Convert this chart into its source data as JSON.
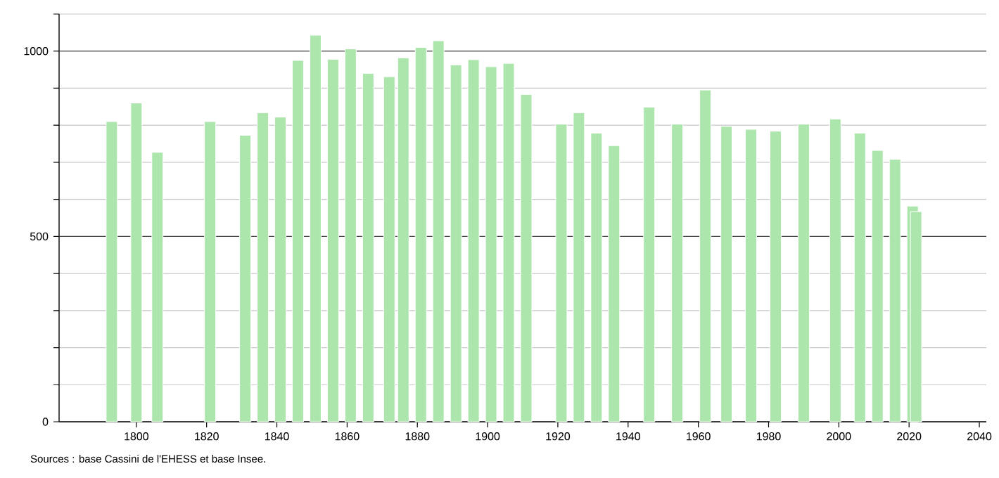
{
  "chart_data": {
    "type": "bar",
    "x": [
      1793,
      1800,
      1806,
      1821,
      1831,
      1836,
      1841,
      1846,
      1851,
      1856,
      1861,
      1866,
      1872,
      1876,
      1881,
      1886,
      1891,
      1896,
      1901,
      1906,
      1911,
      1921,
      1926,
      1931,
      1936,
      1946,
      1954,
      1962,
      1968,
      1975,
      1982,
      1990,
      1999,
      2006,
      2011,
      2016,
      2021,
      2022
    ],
    "values": [
      810,
      860,
      727,
      810,
      773,
      834,
      822,
      975,
      1043,
      978,
      1006,
      940,
      931,
      982,
      1010,
      1028,
      963,
      977,
      958,
      967,
      883,
      803,
      834,
      779,
      745,
      849,
      803,
      895,
      797,
      789,
      784,
      803,
      817,
      779,
      732,
      708,
      582,
      567
    ],
    "color": "#ade6ad",
    "xlim": [
      1778,
      2042
    ],
    "xticks": [
      1800,
      1820,
      1840,
      1860,
      1880,
      1900,
      1920,
      1940,
      1960,
      1980,
      2000,
      2020,
      2040
    ],
    "ylim": [
      0,
      1100
    ],
    "yticks": [
      0,
      {
        "value": 100,
        "label": null
      },
      {
        "value": 200,
        "label": null
      },
      {
        "value": 300,
        "label": null
      },
      {
        "value": 400,
        "label": null
      },
      500,
      {
        "value": 600,
        "label": null
      },
      {
        "value": 700,
        "label": null
      },
      {
        "value": 800,
        "label": null
      },
      {
        "value": 900,
        "label": null
      },
      1000,
      {
        "value": 1100,
        "label": null
      }
    ],
    "grid": "y",
    "annotations": [
      "Sources : base Cassini de l'EHESS et base Insee."
    ]
  }
}
